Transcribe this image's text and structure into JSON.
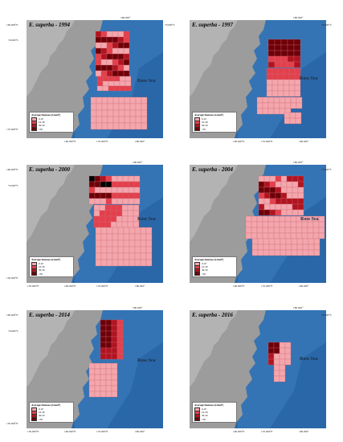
{
  "colors": {
    "ocean": "#2a67a8",
    "land": "#9c9c9c",
    "class_0_10": "#f4a6ad",
    "class_10_30": "#e3404c",
    "class_30_50": "#b01420",
    "class_gt50": "#6e0008"
  },
  "legend": {
    "title": "Average biomass (t/nmi²)",
    "classes": [
      "0-10",
      "10-30",
      "30-50",
      ">50"
    ]
  },
  "ross_label": "Ross Sea",
  "panels": [
    {
      "title": "E. superba - 1994",
      "ticks": {
        "top_right": "180.000°",
        "left_upper": "160.000°E",
        "left_70": "70.000°S",
        "right_70": "70.000°S",
        "left_bottom": "170.000°E",
        "bottom": [
          "170.000°E",
          "160.000°E",
          "170.000°E",
          "180.000°"
        ]
      }
    },
    {
      "title": "E. superba - 1997",
      "ticks": {
        "top_right": "180.000°",
        "left_upper": "",
        "left_70": "",
        "right_70": "70.000°S",
        "left_bottom": "",
        "bottom": [
          "160.000°E",
          "170.000°E",
          "180.000°"
        ]
      }
    },
    {
      "title": "E. superba - 2000",
      "ticks": {
        "top_right": "180.000°",
        "left_upper": "160.000°E",
        "left_70": "70.000°S",
        "right_70": "",
        "left_bottom": "150.000°E",
        "bottom": [
          "150.000°E",
          "160.000°E",
          "170.000°E",
          "180.000°"
        ]
      }
    },
    {
      "title": "E. superba - 2004",
      "ticks": {
        "top_right": "180.000°",
        "left_upper": "",
        "left_70": "",
        "right_70": "70.000°S",
        "left_bottom": "",
        "bottom": [
          "160.000°E",
          "170.000°E",
          "180.000°"
        ]
      }
    },
    {
      "title": "E. superba - 2014",
      "ticks": {
        "top_right": "180.000°",
        "left_upper": "160.000°E",
        "left_70": "70.000°S",
        "right_70": "",
        "left_bottom": "150.000°E",
        "bottom": [
          "150.000°E",
          "160.000°E",
          "170.000°E",
          "180.000°"
        ]
      }
    },
    {
      "title": "E. superba - 2016",
      "ticks": {
        "top_right": "180.000°",
        "left_upper": "",
        "left_70": "",
        "right_70": "70.000°S",
        "left_bottom": "",
        "bottom": [
          "160.000°E",
          "170.000°E",
          "180.000°"
        ]
      }
    }
  ]
}
